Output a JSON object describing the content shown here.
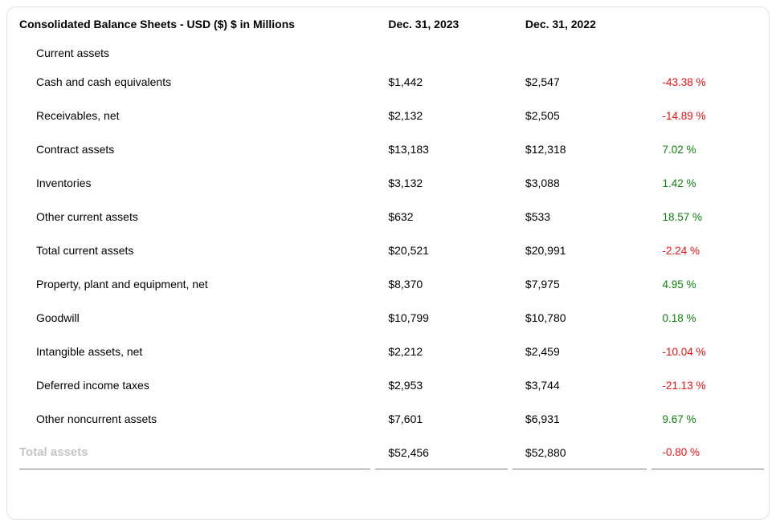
{
  "table": {
    "title": "Consolidated Balance Sheets - USD ($) $ in Millions",
    "col_2023": "Dec. 31, 2023",
    "col_2022": "Dec. 31, 2022",
    "colors": {
      "positive_change": "#0b840b",
      "negative_change": "#ef1010",
      "total_label": "#c5c5c5",
      "card_border": "#e2e2e2",
      "row_divider": "#7d7d7d"
    },
    "rows": [
      {
        "type": "section",
        "label": "Current assets"
      },
      {
        "type": "data",
        "label": "Cash and cash equivalents",
        "y2023": "$1,442",
        "y2022": "$2,547",
        "change": "-43.38 %",
        "trend": "negative"
      },
      {
        "type": "data",
        "label": "Receivables, net",
        "y2023": "$2,132",
        "y2022": "$2,505",
        "change": "-14.89 %",
        "trend": "negative"
      },
      {
        "type": "data",
        "label": "Contract assets",
        "y2023": "$13,183",
        "y2022": "$12,318",
        "change": "7.02 %",
        "trend": "positive"
      },
      {
        "type": "data",
        "label": "Inventories",
        "y2023": "$3,132",
        "y2022": "$3,088",
        "change": "1.42 %",
        "trend": "positive"
      },
      {
        "type": "data",
        "label": "Other current assets",
        "y2023": "$632",
        "y2022": "$533",
        "change": "18.57 %",
        "trend": "positive"
      },
      {
        "type": "data",
        "label": "Total current assets",
        "y2023": "$20,521",
        "y2022": "$20,991",
        "change": "-2.24 %",
        "trend": "negative"
      },
      {
        "type": "data",
        "label": "Property, plant and equipment, net",
        "y2023": "$8,370",
        "y2022": "$7,975",
        "change": "4.95 %",
        "trend": "positive"
      },
      {
        "type": "data",
        "label": "Goodwill",
        "y2023": "$10,799",
        "y2022": "$10,780",
        "change": "0.18 %",
        "trend": "positive"
      },
      {
        "type": "data",
        "label": "Intangible assets, net",
        "y2023": "$2,212",
        "y2022": "$2,459",
        "change": "-10.04 %",
        "trend": "negative"
      },
      {
        "type": "data",
        "label": "Deferred income taxes",
        "y2023": "$2,953",
        "y2022": "$3,744",
        "change": "-21.13 %",
        "trend": "negative"
      },
      {
        "type": "data",
        "label": "Other noncurrent assets",
        "y2023": "$7,601",
        "y2022": "$6,931",
        "change": "9.67 %",
        "trend": "positive"
      },
      {
        "type": "total",
        "label": "Total assets",
        "y2023": "$52,456",
        "y2022": "$52,880",
        "change": "-0.80 %",
        "trend": "negative"
      }
    ]
  }
}
